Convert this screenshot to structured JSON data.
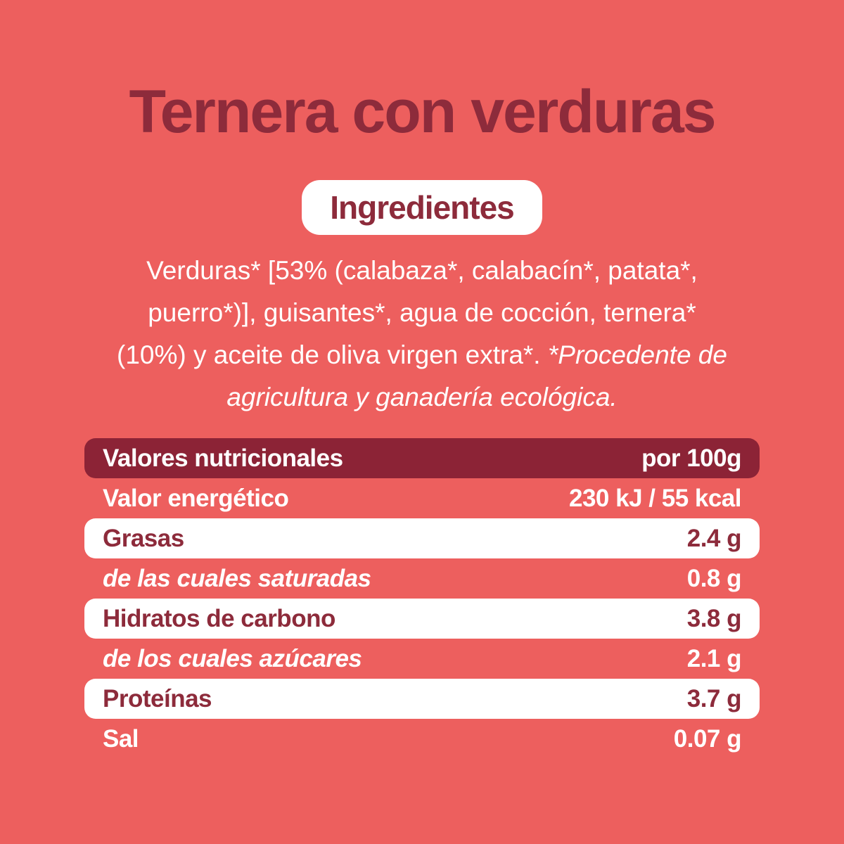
{
  "colors": {
    "background": "#ED5F5E",
    "maroon_text": "#8D2B3B",
    "maroon_bar": "#8C2336",
    "white": "#FFFFFF"
  },
  "title": "Ternera con verduras",
  "ingredients": {
    "badge": "Ingredientes",
    "lines": [
      {
        "r": "Verduras* [53% (calabaza*, calabacín*, patata*,",
        "i": ""
      },
      {
        "r": "puerro*)], guisantes*, agua de cocción, ternera*",
        "i": ""
      },
      {
        "r": "(10%) y aceite de oliva virgen extra*. ",
        "i": "*Procedente de"
      },
      {
        "r": "",
        "i": "agricultura y ganadería ecológica."
      }
    ]
  },
  "table": {
    "header": {
      "label": "Valores nutricionales",
      "value": "por 100g"
    },
    "rows": [
      {
        "label": "Valor energético",
        "value": "230 kJ / 55 kcal"
      },
      {
        "label": "Grasas",
        "value": "2.4 g"
      },
      {
        "label": "de las cuales saturadas",
        "value": "0.8 g"
      },
      {
        "label": "Hidratos de carbono",
        "value": "3.8 g"
      },
      {
        "label": "de los cuales azúcares",
        "value": "2.1 g"
      },
      {
        "label": "Proteínas",
        "value": "3.7 g"
      },
      {
        "label": "Sal",
        "value": "0.07 g"
      }
    ]
  }
}
